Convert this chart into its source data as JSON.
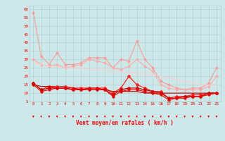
{
  "x": [
    0,
    1,
    2,
    3,
    4,
    5,
    6,
    7,
    8,
    9,
    10,
    11,
    12,
    13,
    14,
    15,
    16,
    17,
    18,
    19,
    20,
    21,
    22,
    23
  ],
  "series": [
    {
      "name": "line1_light_top",
      "color": "#ff9999",
      "lw": 0.8,
      "marker": "D",
      "markersize": 1.5,
      "y": [
        58,
        32,
        27,
        34,
        27,
        27,
        28,
        31,
        31,
        31,
        25,
        30,
        29,
        41,
        30,
        25,
        17,
        15,
        13,
        12,
        13,
        13,
        16,
        25
      ]
    },
    {
      "name": "line2_light_mid",
      "color": "#ffaaaa",
      "lw": 0.8,
      "marker": "D",
      "markersize": 1.5,
      "y": [
        30,
        27,
        26,
        27,
        25,
        26,
        27,
        30,
        29,
        28,
        25,
        24,
        26,
        30,
        26,
        23,
        15,
        13,
        12,
        12,
        12,
        12,
        14,
        20
      ]
    },
    {
      "name": "line3_trend_upper",
      "color": "#ffcccc",
      "lw": 0.8,
      "marker": null,
      "markersize": 0,
      "y": [
        28,
        27,
        26,
        26,
        25,
        25,
        25,
        24,
        24,
        24,
        23,
        23,
        22,
        22,
        21,
        21,
        20,
        19,
        18,
        17,
        16,
        15,
        15,
        15
      ]
    },
    {
      "name": "line4_red_bright",
      "color": "#ff2222",
      "lw": 0.9,
      "marker": "D",
      "markersize": 2.0,
      "y": [
        16,
        12,
        14,
        14,
        14,
        13,
        13,
        13,
        13,
        13,
        10,
        13,
        20,
        15,
        13,
        11,
        11,
        7,
        8,
        8,
        9,
        9,
        10,
        10
      ]
    },
    {
      "name": "line5_red_dark",
      "color": "#cc0000",
      "lw": 0.9,
      "marker": "D",
      "markersize": 2.0,
      "y": [
        16,
        12,
        13,
        13,
        13,
        12,
        12,
        12,
        12,
        12,
        9,
        12,
        13,
        13,
        12,
        11,
        10,
        7,
        7,
        8,
        8,
        8,
        10,
        10
      ]
    },
    {
      "name": "line6_red_med",
      "color": "#ee0000",
      "lw": 0.8,
      "marker": "D",
      "markersize": 1.8,
      "y": [
        15,
        11,
        12,
        13,
        13,
        12,
        12,
        13,
        13,
        12,
        8,
        11,
        12,
        12,
        11,
        10,
        9,
        6,
        7,
        7,
        8,
        8,
        9,
        10
      ]
    },
    {
      "name": "line7_trend_red",
      "color": "#cc0000",
      "lw": 0.8,
      "marker": null,
      "markersize": 0,
      "y": [
        15,
        14,
        14,
        13,
        13,
        13,
        12,
        12,
        12,
        12,
        11,
        11,
        11,
        11,
        10,
        10,
        10,
        10,
        10,
        10,
        10,
        10,
        10,
        10
      ]
    }
  ],
  "xlabel": "Vent moyen/en rafales ( km/h )",
  "xlim": [
    -0.5,
    23.5
  ],
  "ylim": [
    5,
    62
  ],
  "yticks": [
    5,
    10,
    15,
    20,
    25,
    30,
    35,
    40,
    45,
    50,
    55,
    60
  ],
  "xticks": [
    0,
    1,
    2,
    3,
    4,
    5,
    6,
    7,
    8,
    9,
    10,
    11,
    12,
    13,
    14,
    15,
    16,
    17,
    18,
    19,
    20,
    21,
    22,
    23
  ],
  "bg_color": "#cce8e8",
  "grid_color": "#aacccc",
  "text_color": "#ff0000",
  "arrow_color": "#ff0000",
  "tick_fontsize": 4.2,
  "xlabel_fontsize": 5.5
}
